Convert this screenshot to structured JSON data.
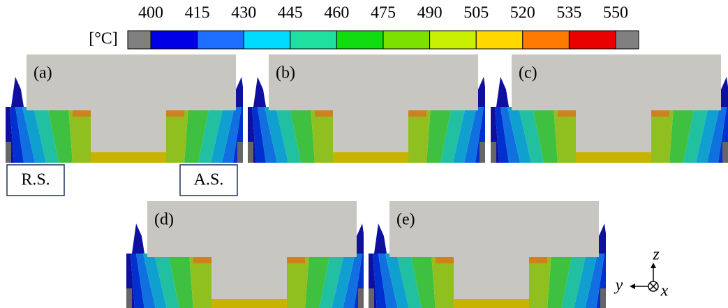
{
  "colorbar": {
    "unit": "[°C]",
    "ticks": [
      400,
      415,
      430,
      445,
      460,
      475,
      490,
      505,
      520,
      535,
      550
    ],
    "colors": [
      "#0000e6",
      "#1e6eff",
      "#00dcff",
      "#20e0a0",
      "#10dc10",
      "#7ce000",
      "#c8f000",
      "#ffd800",
      "#ff7a00",
      "#e80000"
    ],
    "end_color": "#808080"
  },
  "panels": [
    {
      "label": "(a)"
    },
    {
      "label": "(b)"
    },
    {
      "label": "(c)"
    },
    {
      "label": "(d)"
    },
    {
      "label": "(e)"
    }
  ],
  "side_labels": [
    "R.S.",
    "A.S."
  ],
  "axes": {
    "z": "z",
    "y": "y",
    "x": "x"
  }
}
